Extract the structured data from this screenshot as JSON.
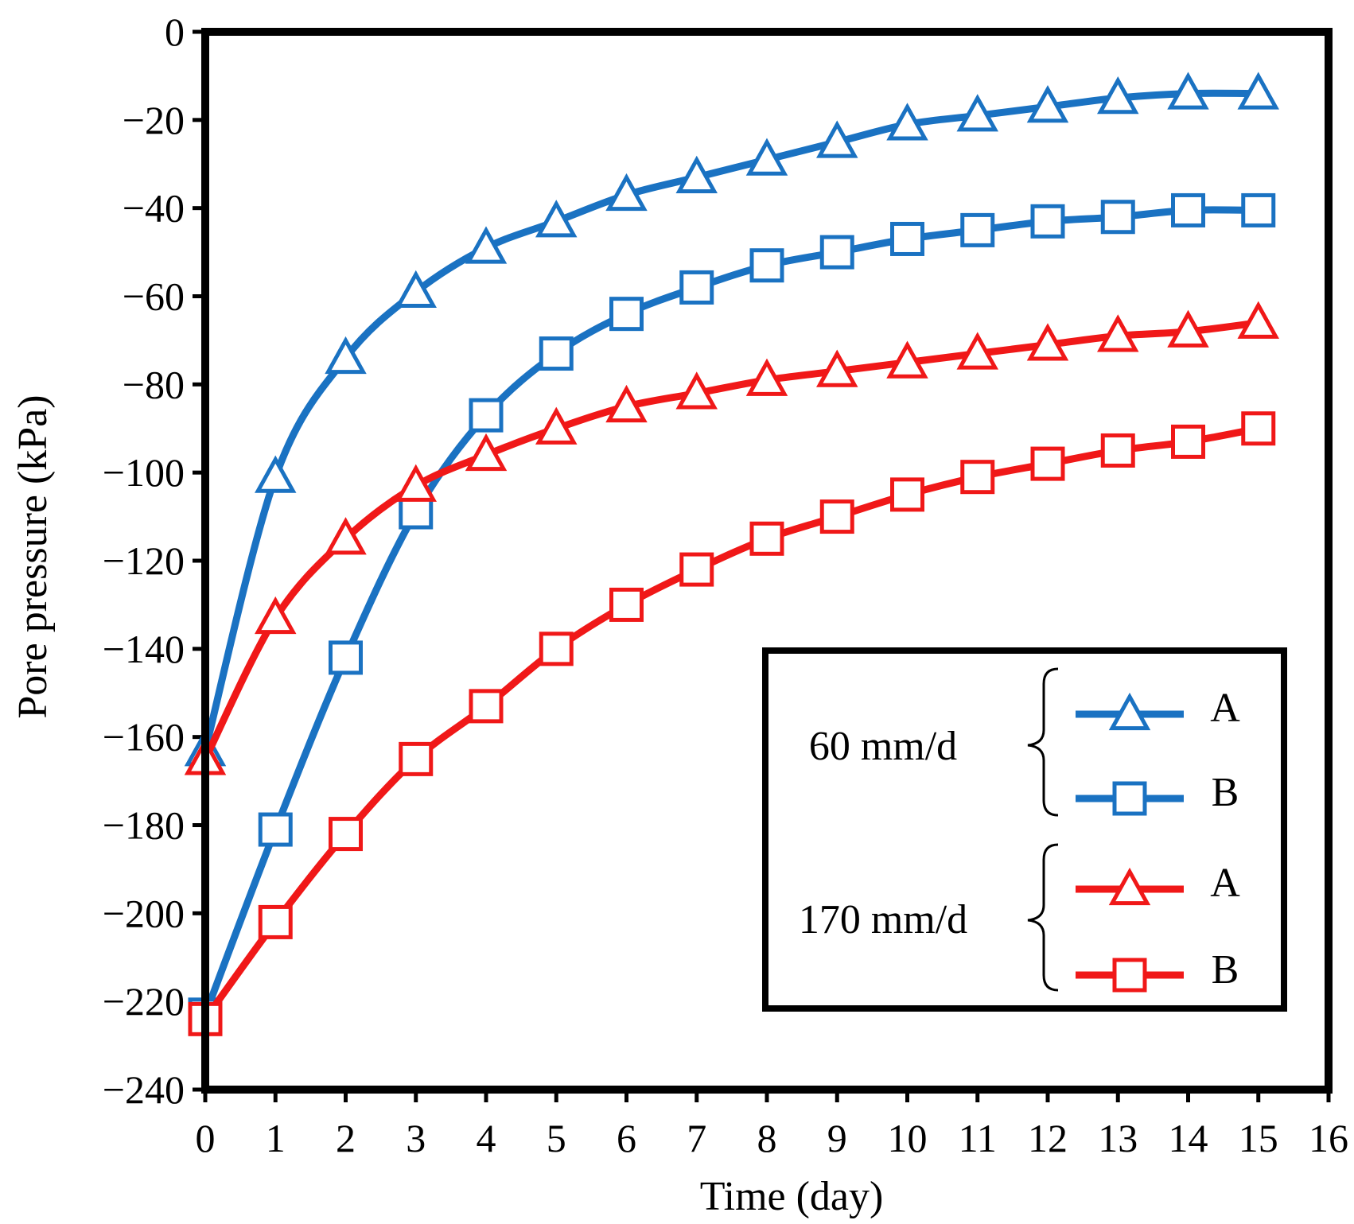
{
  "chart_data": {
    "type": "line",
    "xlabel": "Time (day)",
    "ylabel": "Pore pressure (kPa)",
    "xlim": [
      0,
      16
    ],
    "ylim": [
      -240,
      0
    ],
    "xticks": [
      0,
      1,
      2,
      3,
      4,
      5,
      6,
      7,
      8,
      9,
      10,
      11,
      12,
      13,
      14,
      15,
      16
    ],
    "yticks": [
      0,
      -20,
      -40,
      -60,
      -80,
      -100,
      -120,
      -140,
      -160,
      -180,
      -200,
      -220,
      -240
    ],
    "ytick_labels": [
      "0",
      "−20",
      "−40",
      "−60",
      "−80",
      "−100",
      "−120",
      "−140",
      "−160",
      "−180",
      "−200",
      "−220",
      "−240"
    ],
    "x": [
      0,
      1,
      2,
      3,
      4,
      5,
      6,
      7,
      8,
      9,
      10,
      11,
      12,
      13,
      14,
      15
    ],
    "series": [
      {
        "group": "60 mm/d",
        "name": "A",
        "color": "#1a72c2",
        "marker": "triangle",
        "values": [
          -163,
          -101,
          -74,
          -59,
          -49,
          -43,
          -37,
          -33,
          -29,
          -25,
          -21,
          -19,
          -17,
          -15,
          -14,
          -14
        ]
      },
      {
        "group": "60 mm/d",
        "name": "B",
        "color": "#1a72c2",
        "marker": "square",
        "values": [
          -223,
          -181,
          -142,
          -109,
          -87,
          -73,
          -64,
          -58,
          -53,
          -50,
          -47,
          -45,
          -43,
          -42,
          -40.5,
          -40.5
        ]
      },
      {
        "group": "170 mm/d",
        "name": "A",
        "color": "#f01818",
        "marker": "triangle",
        "values": [
          -165,
          -133,
          -115,
          -103,
          -96,
          -90,
          -85,
          -82,
          -79,
          -77,
          -75,
          -73,
          -71,
          -69,
          -68,
          -66
        ]
      },
      {
        "group": "170 mm/d",
        "name": "B",
        "color": "#f01818",
        "marker": "square",
        "values": [
          -224,
          -202,
          -182,
          -165,
          -153,
          -140,
          -130,
          -122,
          -115,
          -110,
          -105,
          -101,
          -98,
          -95,
          -93,
          -90
        ]
      }
    ],
    "legend": {
      "position": "bottom-right",
      "groups": [
        {
          "label": "60 mm/d",
          "entries": [
            "A",
            "B"
          ]
        },
        {
          "label": "170 mm/d",
          "entries": [
            "A",
            "B"
          ]
        }
      ]
    }
  }
}
